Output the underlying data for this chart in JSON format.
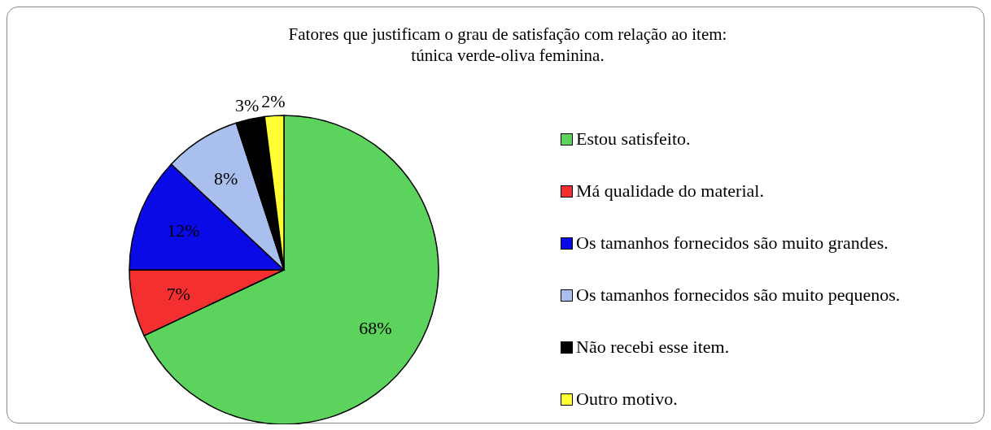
{
  "chart_data": {
    "type": "pie",
    "title": "Fatores que justificam o grau de satisfação com relação ao item:\ntúnica verde-oliva feminina.",
    "categories": [
      "Estou satisfeito.",
      "Má qualidade do material.",
      "Os tamanhos fornecidos são muito grandes.",
      "Os tamanhos fornecidos são muito pequenos.",
      "Não recebi esse item.",
      "Outro motivo."
    ],
    "values": [
      68,
      7,
      12,
      8,
      3,
      2
    ],
    "colors": [
      "#5cd35c",
      "#f42f2f",
      "#0a0ae6",
      "#a9c0ee",
      "#000000",
      "#ffff33"
    ],
    "value_labels": [
      "68%",
      "7%",
      "12%",
      "8%",
      "3%",
      "2%"
    ],
    "legend": "right"
  }
}
